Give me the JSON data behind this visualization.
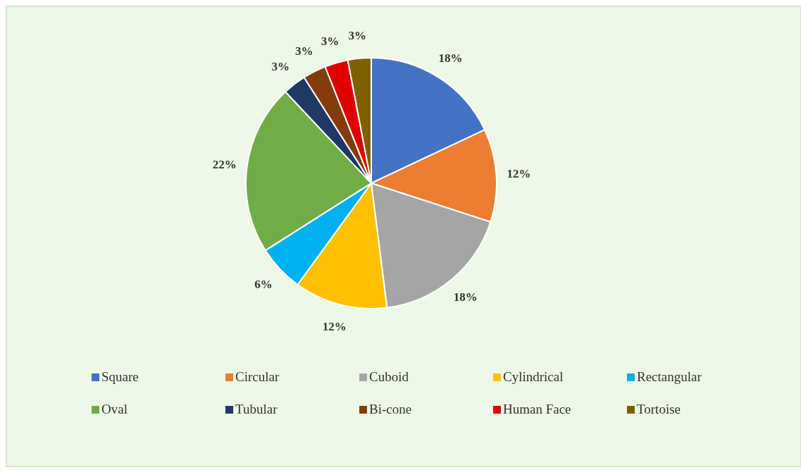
{
  "chart_data": {
    "type": "pie",
    "categories": [
      "Square",
      "Circular",
      "Cuboid",
      "Cylindrical",
      "Rectangular",
      "Oval",
      "Tubular",
      "Bi-cone",
      "Human Face",
      "Tortoise"
    ],
    "values": [
      18,
      12,
      18,
      12,
      6,
      22,
      3,
      3,
      3,
      3
    ],
    "value_labels": [
      "18%",
      "12%",
      "18%",
      "12%",
      "6%",
      "22%",
      "3%",
      "3%",
      "3%",
      "3%"
    ],
    "colors": [
      "#4472c4",
      "#ed7d31",
      "#a5a5a5",
      "#ffc000",
      "#00b0f0",
      "#70ad47",
      "#203864",
      "#843c0c",
      "#e00000",
      "#7f6000"
    ],
    "legend": "bottom"
  }
}
